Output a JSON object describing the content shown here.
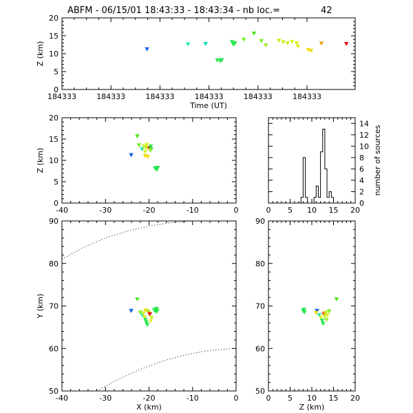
{
  "title": {
    "text": "ABFM - 06/15/01 18:43:33 - 18:43:34 - nb loc.=",
    "count": "42"
  },
  "chart_data": [
    {
      "id": "time_z",
      "type": "scatter",
      "xlabel": "Time (UT)",
      "ylabel": "Z (km)",
      "x_tick_labels": [
        "184333",
        "184333",
        "184333",
        "184333",
        "184333",
        "184333"
      ],
      "xlim": [
        0,
        1
      ],
      "ylim": [
        0,
        20
      ],
      "y_ticks": [
        "0",
        "5",
        "10",
        "15",
        "20"
      ],
      "points": [
        {
          "x": 0.29,
          "y": 11.3,
          "color": "#1464dc"
        },
        {
          "x": 0.43,
          "y": 12.7,
          "color": "#28e6b4"
        },
        {
          "x": 0.49,
          "y": 12.8,
          "color": "#14dcb4"
        },
        {
          "x": 0.53,
          "y": 8.2,
          "color": "#28e650"
        },
        {
          "x": 0.54,
          "y": 8.0,
          "color": "#28e650"
        },
        {
          "x": 0.545,
          "y": 8.3,
          "color": "#28e650"
        },
        {
          "x": 0.58,
          "y": 13.3,
          "color": "#28e650"
        },
        {
          "x": 0.585,
          "y": 12.6,
          "color": "#28e650"
        },
        {
          "x": 0.59,
          "y": 13.0,
          "color": "#28e650"
        },
        {
          "x": 0.62,
          "y": 14.0,
          "color": "#78f028"
        },
        {
          "x": 0.655,
          "y": 15.7,
          "color": "#50e628"
        },
        {
          "x": 0.68,
          "y": 13.6,
          "color": "#78f028"
        },
        {
          "x": 0.695,
          "y": 12.4,
          "color": "#a0f028"
        },
        {
          "x": 0.74,
          "y": 13.7,
          "color": "#c8f028"
        },
        {
          "x": 0.755,
          "y": 13.3,
          "color": "#c8f028"
        },
        {
          "x": 0.77,
          "y": 13.0,
          "color": "#c8f028"
        },
        {
          "x": 0.785,
          "y": 13.4,
          "color": "#dcf028"
        },
        {
          "x": 0.8,
          "y": 13.0,
          "color": "#dcf028"
        },
        {
          "x": 0.805,
          "y": 12.1,
          "color": "#dcf028"
        },
        {
          "x": 0.84,
          "y": 11.1,
          "color": "#f0dc14"
        },
        {
          "x": 0.85,
          "y": 10.9,
          "color": "#f0dc14"
        },
        {
          "x": 0.885,
          "y": 12.9,
          "color": "#f0a014"
        },
        {
          "x": 0.97,
          "y": 12.8,
          "color": "#e61414"
        }
      ]
    },
    {
      "id": "x_z",
      "type": "scatter",
      "xlabel": "",
      "ylabel": "Z (km)",
      "xlim": [
        -40,
        0
      ],
      "ylim": [
        0,
        20
      ],
      "x_ticks": [
        "-40",
        "-30",
        "-20",
        "-10",
        "0"
      ],
      "y_ticks": [
        "0",
        "5",
        "10",
        "15",
        "20"
      ],
      "points": [
        {
          "x": -24.1,
          "y": 11.3,
          "color": "#1464dc"
        },
        {
          "x": -22.7,
          "y": 15.7,
          "color": "#50e628"
        },
        {
          "x": -22.3,
          "y": 13.6,
          "color": "#78f028"
        },
        {
          "x": -21.6,
          "y": 12.7,
          "color": "#28e6b4"
        },
        {
          "x": -21.2,
          "y": 13.3,
          "color": "#c8f028"
        },
        {
          "x": -20.9,
          "y": 12.1,
          "color": "#dcf028"
        },
        {
          "x": -20.7,
          "y": 13.0,
          "color": "#c8f028"
        },
        {
          "x": -20.5,
          "y": 13.7,
          "color": "#dcf028"
        },
        {
          "x": -20.9,
          "y": 11.1,
          "color": "#f0dc14"
        },
        {
          "x": -20.3,
          "y": 10.9,
          "color": "#f0dc14"
        },
        {
          "x": -20.1,
          "y": 12.9,
          "color": "#f0a014"
        },
        {
          "x": -19.8,
          "y": 12.8,
          "color": "#e61414"
        },
        {
          "x": -19.6,
          "y": 13.3,
          "color": "#28e650"
        },
        {
          "x": -19.5,
          "y": 12.6,
          "color": "#28e650"
        },
        {
          "x": -19.7,
          "y": 12.4,
          "color": "#a0f028"
        },
        {
          "x": -18.6,
          "y": 8.2,
          "color": "#28e650"
        },
        {
          "x": -18.3,
          "y": 8.0,
          "color": "#28e650"
        },
        {
          "x": -18.0,
          "y": 8.3,
          "color": "#28e650"
        },
        {
          "x": -18.2,
          "y": 7.9,
          "color": "#28e650"
        }
      ]
    },
    {
      "id": "histogram",
      "type": "bar",
      "ylabel": "number of sources",
      "xlim": [
        0,
        20
      ],
      "ylim": [
        0,
        15
      ],
      "x_ticks": [
        "0",
        "5",
        "10",
        "15",
        "20"
      ],
      "y_ticks": [
        "0",
        "2",
        "4",
        "6",
        "8",
        "10",
        "12",
        "14"
      ],
      "bin_width": 0.5,
      "bins": [
        {
          "x": 0.0,
          "count": 0
        },
        {
          "x": 7.0,
          "count": 0
        },
        {
          "x": 7.5,
          "count": 1
        },
        {
          "x": 8.0,
          "count": 8
        },
        {
          "x": 8.5,
          "count": 1
        },
        {
          "x": 9.0,
          "count": 0
        },
        {
          "x": 10.5,
          "count": 1
        },
        {
          "x": 11.0,
          "count": 3
        },
        {
          "x": 11.5,
          "count": 1
        },
        {
          "x": 12.0,
          "count": 9
        },
        {
          "x": 12.5,
          "count": 13
        },
        {
          "x": 13.0,
          "count": 6
        },
        {
          "x": 13.5,
          "count": 1
        },
        {
          "x": 14.0,
          "count": 2
        },
        {
          "x": 14.5,
          "count": 1
        },
        {
          "x": 15.0,
          "count": 0
        }
      ]
    },
    {
      "id": "x_y",
      "type": "scatter",
      "xlabel": "X (km)",
      "ylabel": "Y (km)",
      "xlim": [
        -40,
        0
      ],
      "ylim": [
        50,
        90
      ],
      "x_ticks": [
        "-40",
        "-30",
        "-20",
        "-10",
        "0"
      ],
      "y_ticks": [
        "50",
        "60",
        "70",
        "80",
        "90"
      ],
      "boundary_curves": [
        [
          [
            -40,
            81.0
          ],
          [
            -35,
            83.8
          ],
          [
            -30,
            86.0
          ],
          [
            -25,
            87.6
          ],
          [
            -20,
            88.8
          ],
          [
            -15,
            89.6
          ],
          [
            -10,
            90.0
          ]
        ],
        [
          [
            -32,
            50.0
          ],
          [
            -27,
            52.8
          ],
          [
            -22,
            55.1
          ],
          [
            -17,
            57.0
          ],
          [
            -12,
            58.4
          ],
          [
            -7,
            59.4
          ],
          [
            -2,
            59.9
          ],
          [
            0,
            60.0
          ]
        ]
      ],
      "points": [
        {
          "x": -24.1,
          "y": 68.9,
          "color": "#1464dc"
        },
        {
          "x": -22.7,
          "y": 71.6,
          "color": "#50e628"
        },
        {
          "x": -22.0,
          "y": 68.5,
          "color": "#78f028"
        },
        {
          "x": -21.5,
          "y": 67.8,
          "color": "#28e6b4"
        },
        {
          "x": -21.3,
          "y": 68.3,
          "color": "#c8f028"
        },
        {
          "x": -21.0,
          "y": 67.4,
          "color": "#dcf028"
        },
        {
          "x": -20.8,
          "y": 66.8,
          "color": "#28e650"
        },
        {
          "x": -20.6,
          "y": 66.2,
          "color": "#28e650"
        },
        {
          "x": -20.4,
          "y": 65.6,
          "color": "#28e650"
        },
        {
          "x": -20.8,
          "y": 69.0,
          "color": "#f0dc14"
        },
        {
          "x": -20.2,
          "y": 68.8,
          "color": "#a0f028"
        },
        {
          "x": -20.0,
          "y": 68.3,
          "color": "#f0a014"
        },
        {
          "x": -19.8,
          "y": 68.1,
          "color": "#e61414"
        },
        {
          "x": -19.4,
          "y": 67.3,
          "color": "#c8f028"
        },
        {
          "x": -19.6,
          "y": 66.5,
          "color": "#dcf028"
        },
        {
          "x": -18.8,
          "y": 69.1,
          "color": "#28e650"
        },
        {
          "x": -18.4,
          "y": 68.7,
          "color": "#28e650"
        },
        {
          "x": -18.1,
          "y": 68.9,
          "color": "#28e650"
        },
        {
          "x": -18.3,
          "y": 69.4,
          "color": "#28e650"
        }
      ]
    },
    {
      "id": "z_y",
      "type": "scatter",
      "xlabel": "Z (km)",
      "ylabel": "",
      "xlim": [
        0,
        20
      ],
      "ylim": [
        50,
        90
      ],
      "x_ticks": [
        "0",
        "5",
        "10",
        "15",
        "20"
      ],
      "y_ticks": [
        "50",
        "60",
        "70",
        "80",
        "90"
      ],
      "points": [
        {
          "x": 8.0,
          "y": 68.9,
          "color": "#28e650"
        },
        {
          "x": 8.3,
          "y": 68.6,
          "color": "#28e650"
        },
        {
          "x": 8.2,
          "y": 69.2,
          "color": "#28e650"
        },
        {
          "x": 11.2,
          "y": 68.9,
          "color": "#1464dc"
        },
        {
          "x": 11.0,
          "y": 68.4,
          "color": "#f0dc14"
        },
        {
          "x": 11.7,
          "y": 67.9,
          "color": "#28e6b4"
        },
        {
          "x": 12.1,
          "y": 67.3,
          "color": "#dcf028"
        },
        {
          "x": 12.4,
          "y": 66.6,
          "color": "#28e650"
        },
        {
          "x": 12.6,
          "y": 65.9,
          "color": "#28e650"
        },
        {
          "x": 12.8,
          "y": 68.1,
          "color": "#e61414"
        },
        {
          "x": 12.9,
          "y": 68.3,
          "color": "#f0a014"
        },
        {
          "x": 13.0,
          "y": 67.6,
          "color": "#c8f028"
        },
        {
          "x": 13.3,
          "y": 68.5,
          "color": "#c8f028"
        },
        {
          "x": 13.6,
          "y": 67.9,
          "color": "#dcf028"
        },
        {
          "x": 14.0,
          "y": 68.8,
          "color": "#78f028"
        },
        {
          "x": 13.4,
          "y": 66.8,
          "color": "#a0f028"
        },
        {
          "x": 15.7,
          "y": 71.6,
          "color": "#50e628"
        }
      ]
    }
  ]
}
